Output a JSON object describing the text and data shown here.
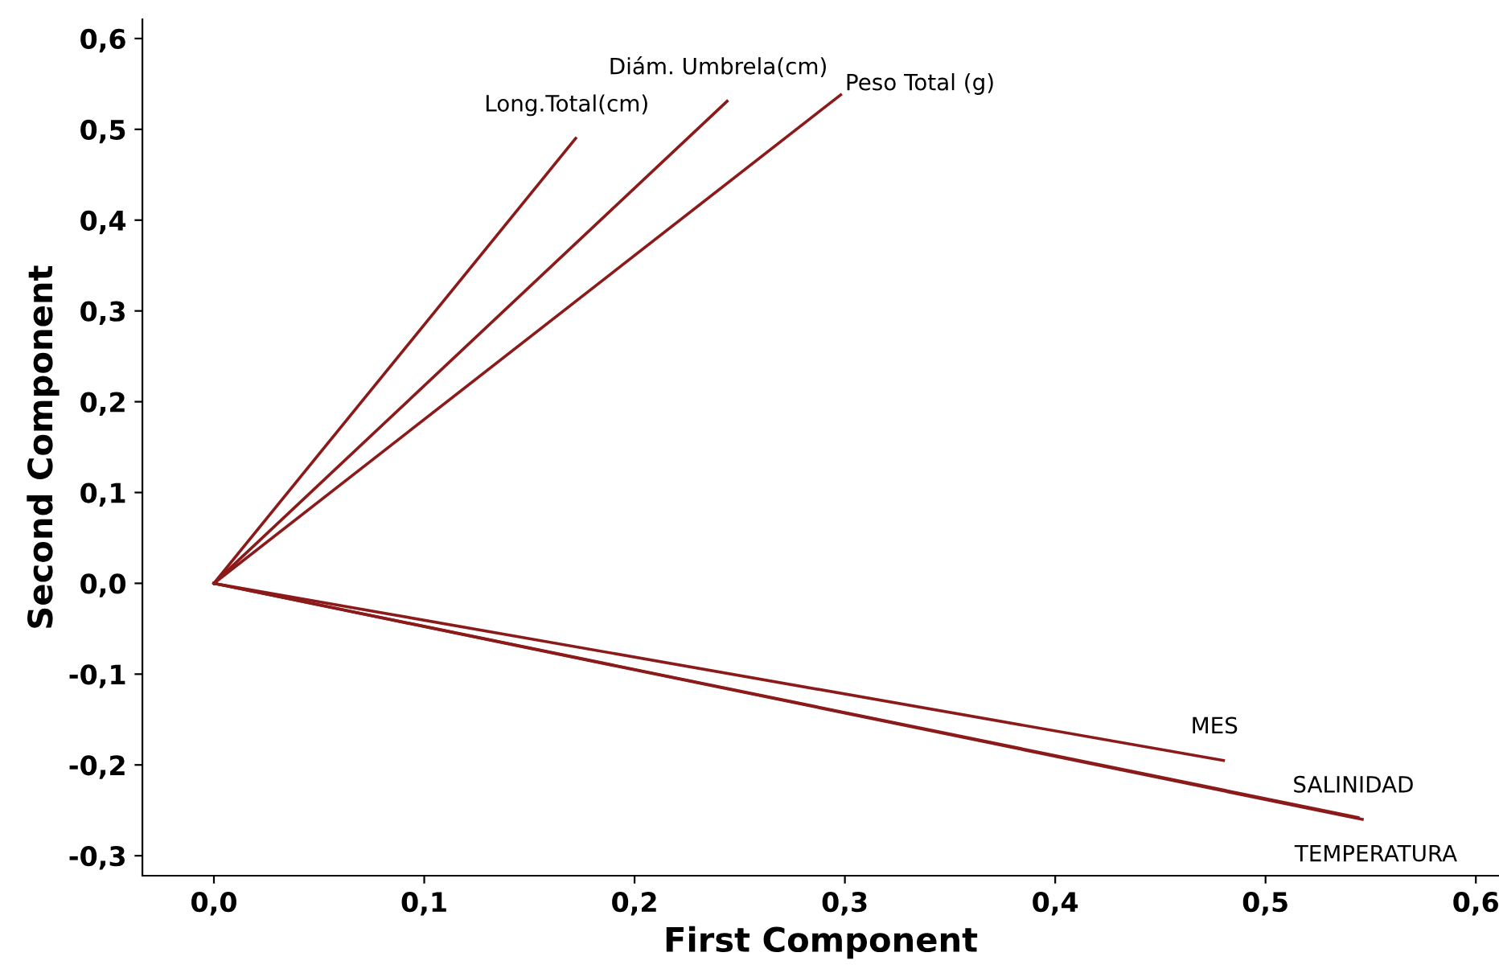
{
  "chart_data": {
    "type": "line",
    "xlabel": "First Component",
    "ylabel": "Second Component",
    "xlim": [
      -0.034,
      0.611
    ],
    "ylim": [
      -0.322,
      0.621
    ],
    "xticks": [
      {
        "value": 0.0,
        "label": "0,0"
      },
      {
        "value": 0.1,
        "label": "0,1"
      },
      {
        "value": 0.2,
        "label": "0,2"
      },
      {
        "value": 0.3,
        "label": "0,3"
      },
      {
        "value": 0.4,
        "label": "0,4"
      },
      {
        "value": 0.5,
        "label": "0,5"
      },
      {
        "value": 0.6,
        "label": "0,6"
      }
    ],
    "yticks": [
      {
        "value": -0.3,
        "label": "-0,3"
      },
      {
        "value": -0.2,
        "label": "-0,2"
      },
      {
        "value": -0.1,
        "label": "-0,1"
      },
      {
        "value": 0.0,
        "label": "0,0"
      },
      {
        "value": 0.1,
        "label": "0,1"
      },
      {
        "value": 0.2,
        "label": "0,2"
      },
      {
        "value": 0.3,
        "label": "0,3"
      },
      {
        "value": 0.4,
        "label": "0,4"
      },
      {
        "value": 0.5,
        "label": "0,5"
      },
      {
        "value": 0.6,
        "label": "0,6"
      }
    ],
    "grid": false,
    "legend": false,
    "marker": "none",
    "line_style": "solid",
    "series": [
      {
        "color": "#8b1a1a",
        "x": [
          0,
          0.172
        ],
        "values": [
          0,
          0.49
        ]
      },
      {
        "color": "#8b1a1a",
        "x": [
          0,
          0.244
        ],
        "values": [
          0,
          0.531
        ]
      },
      {
        "color": "#8b1a1a",
        "x": [
          0,
          0.298
        ],
        "values": [
          0,
          0.538
        ]
      },
      {
        "color": "#8b1a1a",
        "x": [
          0,
          0.48
        ],
        "values": [
          0,
          -0.195
        ]
      },
      {
        "color": "#8b1a1a",
        "x": [
          0,
          0.546
        ],
        "values": [
          0,
          -0.26
        ]
      },
      {
        "color": "#8b1a1a",
        "x": [
          0,
          0.544
        ],
        "values": [
          0,
          -0.258
        ]
      }
    ],
    "annotations": [
      {
        "text": "Long.Total(cm)",
        "x": 0.172,
        "y": 0.49
      },
      {
        "text": "Diám. Umbrela(cm)",
        "x": 0.244,
        "y": 0.531
      },
      {
        "text": "Peso Total (g)",
        "x": 0.298,
        "y": 0.538
      },
      {
        "text": "MES",
        "x": 0.48,
        "y": -0.195
      },
      {
        "text": "SALINIDAD",
        "x": 0.546,
        "y": -0.26
      },
      {
        "text": "TEMPERATURA",
        "x": 0.544,
        "y": -0.258
      }
    ]
  }
}
